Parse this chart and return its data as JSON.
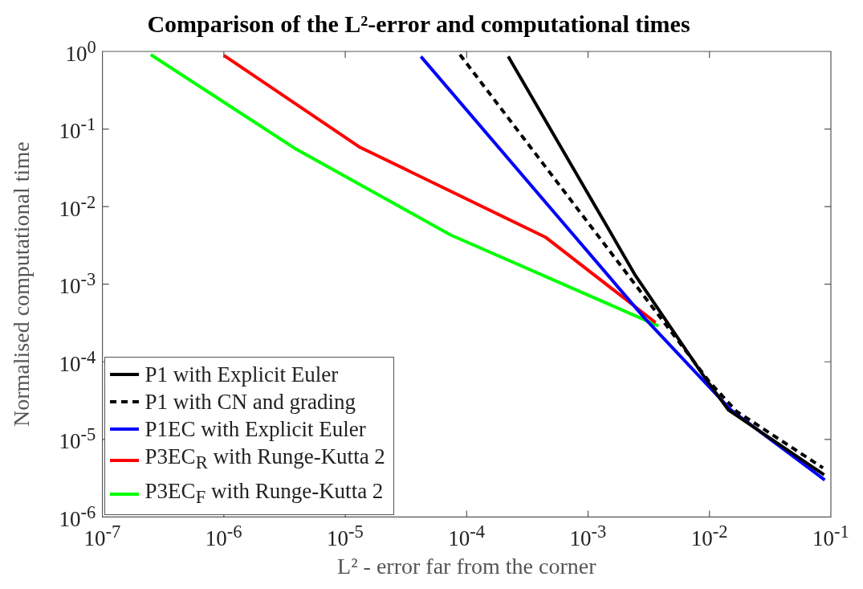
{
  "chart_data": {
    "type": "line",
    "title": "Comparison of the L²-error and computational times",
    "xlabel": "L² - error far from the corner",
    "ylabel": "Normalised computational time",
    "log": "xy",
    "grid": false,
    "legend": "bottom left",
    "marker": "none",
    "xlim": [
      1e-07,
      0.1
    ],
    "ylim": [
      1e-06,
      1
    ],
    "xticks": [
      {
        "value": 1e-07,
        "label": "10$^{-7}$"
      },
      {
        "value": 1e-06,
        "label": "10$^{-6}$"
      },
      {
        "value": 1e-05,
        "label": "10$^{-5}$"
      },
      {
        "value": 0.0001,
        "label": "10$^{-4}$"
      },
      {
        "value": 0.001,
        "label": "10$^{-3}$"
      },
      {
        "value": 0.01,
        "label": "10$^{-2}$"
      },
      {
        "value": 0.1,
        "label": "10$^{-1}$"
      }
    ],
    "yticks": [
      {
        "value": 1e-06,
        "label": "10$^{-6}$"
      },
      {
        "value": 1e-05,
        "label": "10$^{-5}$"
      },
      {
        "value": 0.0001,
        "label": "10$^{-4}$"
      },
      {
        "value": 0.001,
        "label": "10$^{-3}$"
      },
      {
        "value": 0.01,
        "label": "10$^{-2}$"
      },
      {
        "value": 0.1,
        "label": "10$^{-1}$"
      },
      {
        "value": 1,
        "label": "10$^{0}$"
      }
    ],
    "series": [
      {
        "name": "P1 with Explicit Euler",
        "color": "#000000",
        "line_style": "solid",
        "x": [
          0.00022,
          0.0017,
          0.00245,
          0.009,
          0.0143,
          0.088
        ],
        "values": [
          0.86,
          0.0035,
          0.0013,
          6.5e-05,
          2.4e-05,
          3.5e-06
        ]
      },
      {
        "name": "P1 with CN and grading",
        "color": "#000000",
        "line_style": "dashed",
        "x": [
          8.8e-05,
          0.01,
          0.0167,
          0.086
        ],
        "values": [
          0.91,
          5.5e-05,
          2.3e-05,
          4.3e-06
        ]
      },
      {
        "name": "P1EC with Explicit Euler",
        "color": "#0000ff",
        "line_style": "solid",
        "x": [
          4.2e-05,
          0.0029,
          0.015,
          0.089
        ],
        "values": [
          0.86,
          0.00037,
          2.4e-05,
          3e-06
        ]
      },
      {
        "name": "P3EC$_{R}$ with Runge-Kutta 2",
        "color": "#ff0000",
        "line_style": "solid",
        "x": [
          1e-06,
          1.3e-05,
          0.00045,
          0.0036
        ],
        "values": [
          0.89,
          0.059,
          0.004,
          0.00032
        ]
      },
      {
        "name": "P3EC$_{F}$ with Runge-Kutta 2",
        "color": "#00ff00",
        "line_style": "solid",
        "x": [
          2.5e-07,
          3.8e-06,
          7.4e-05,
          0.0038
        ],
        "values": [
          0.91,
          0.057,
          0.0043,
          0.00029
        ]
      }
    ]
  }
}
